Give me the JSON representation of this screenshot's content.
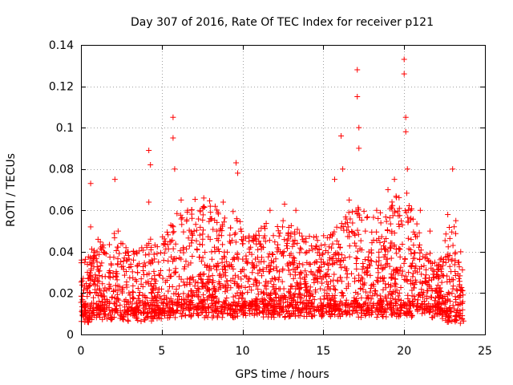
{
  "chart_data": {
    "type": "scatter",
    "title": "Day 307 of 2016, Rate Of TEC Index for receiver p121",
    "xlabel": "GPS time / hours",
    "ylabel": "ROTI / TECUs",
    "xlim": [
      0,
      25
    ],
    "ylim": [
      0,
      0.14
    ],
    "x_ticks": [
      0,
      5,
      10,
      15,
      20,
      25
    ],
    "x_tick_labels": [
      "0",
      "5",
      "10",
      "15",
      "20",
      "25"
    ],
    "y_ticks": [
      0,
      0.02,
      0.04,
      0.06,
      0.08,
      0.1,
      0.12,
      0.14
    ],
    "y_tick_labels": [
      "0",
      "0.02",
      "0.04",
      "0.06",
      "0.08",
      "0.1",
      "0.12",
      "0.14"
    ],
    "grid": true,
    "marker": "+",
    "color": "#ff0000",
    "series": [
      {
        "name": "ROTI",
        "points": [
          [
            0.1,
            0.009
          ],
          [
            0.3,
            0.015
          ],
          [
            0.4,
            0.03
          ],
          [
            0.6,
            0.052
          ],
          [
            0.6,
            0.073
          ],
          [
            1.0,
            0.04
          ],
          [
            1.2,
            0.02
          ],
          [
            1.5,
            0.028
          ],
          [
            2.1,
            0.075
          ],
          [
            2.3,
            0.05
          ],
          [
            3.5,
            0.03
          ],
          [
            4.2,
            0.089
          ],
          [
            4.3,
            0.082
          ],
          [
            4.2,
            0.064
          ],
          [
            4.8,
            0.035
          ],
          [
            5.5,
            0.045
          ],
          [
            5.7,
            0.105
          ],
          [
            5.7,
            0.095
          ],
          [
            5.8,
            0.08
          ],
          [
            6.2,
            0.065
          ],
          [
            6.6,
            0.06
          ],
          [
            7.0,
            0.05
          ],
          [
            7.6,
            0.066
          ],
          [
            8.0,
            0.062
          ],
          [
            8.4,
            0.05
          ],
          [
            8.8,
            0.064
          ],
          [
            9.2,
            0.045
          ],
          [
            9.6,
            0.083
          ],
          [
            9.7,
            0.078
          ],
          [
            10.4,
            0.045
          ],
          [
            11.0,
            0.05
          ],
          [
            11.7,
            0.06
          ],
          [
            12.6,
            0.063
          ],
          [
            13.3,
            0.06
          ],
          [
            13.8,
            0.045
          ],
          [
            15.0,
            0.035
          ],
          [
            15.7,
            0.075
          ],
          [
            16.1,
            0.096
          ],
          [
            16.2,
            0.08
          ],
          [
            16.6,
            0.065
          ],
          [
            17.1,
            0.128
          ],
          [
            17.1,
            0.115
          ],
          [
            17.2,
            0.1
          ],
          [
            17.2,
            0.09
          ],
          [
            17.6,
            0.05
          ],
          [
            18.3,
            0.06
          ],
          [
            19.0,
            0.07
          ],
          [
            19.4,
            0.075
          ],
          [
            20.0,
            0.133
          ],
          [
            20.0,
            0.126
          ],
          [
            20.1,
            0.105
          ],
          [
            20.1,
            0.098
          ],
          [
            20.2,
            0.08
          ],
          [
            20.4,
            0.06
          ],
          [
            21.0,
            0.06
          ],
          [
            21.6,
            0.05
          ],
          [
            22.7,
            0.058
          ],
          [
            23.0,
            0.08
          ],
          [
            23.2,
            0.055
          ],
          [
            23.5,
            0.04
          ],
          [
            23.6,
            0.015
          ]
        ]
      }
    ],
    "envelope": {
      "description": "dense scatter of ROTI samples every 30 s",
      "x": [
        0,
        1,
        2,
        3,
        4,
        5,
        6,
        7,
        8,
        9,
        10,
        11,
        12,
        13,
        14,
        15,
        16,
        17,
        18,
        19,
        20,
        21,
        22,
        22.7,
        23,
        23.7
      ],
      "base": [
        0.005,
        0.006,
        0.006,
        0.006,
        0.006,
        0.007,
        0.008,
        0.008,
        0.008,
        0.008,
        0.008,
        0.008,
        0.008,
        0.008,
        0.008,
        0.008,
        0.008,
        0.008,
        0.008,
        0.008,
        0.008,
        0.008,
        0.008,
        0.005,
        0.005,
        0.005
      ],
      "upper": [
        0.035,
        0.04,
        0.045,
        0.04,
        0.04,
        0.045,
        0.055,
        0.06,
        0.06,
        0.06,
        0.05,
        0.05,
        0.05,
        0.05,
        0.045,
        0.05,
        0.055,
        0.06,
        0.055,
        0.06,
        0.065,
        0.05,
        0.03,
        0.05,
        0.05,
        0.035
      ]
    }
  }
}
